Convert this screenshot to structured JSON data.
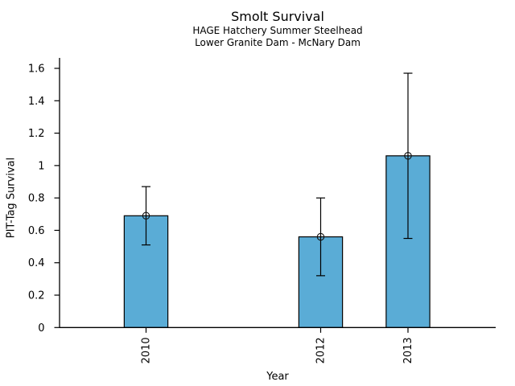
{
  "chart_data": {
    "type": "bar",
    "title": "Smolt Survival",
    "subtitle1": "HAGE Hatchery Summer Steelhead",
    "subtitle2": "Lower Granite Dam - McNary Dam",
    "xlabel": "Year",
    "ylabel": "PIT-Tag Survival",
    "categories": [
      "2010",
      "2012",
      "2013"
    ],
    "values": [
      0.69,
      0.56,
      1.06
    ],
    "error_low": [
      0.51,
      0.32,
      0.55
    ],
    "error_high": [
      0.87,
      0.8,
      1.57
    ],
    "ylim": [
      0,
      1.6
    ],
    "ytick_values": [
      0,
      0.2,
      0.4,
      0.6,
      0.8,
      1.0,
      1.2,
      1.4,
      1.6
    ],
    "ytick_labels": [
      "0",
      "0.2",
      "0.4",
      "0.6",
      "0.8",
      "1",
      "1.2",
      "1.4",
      "1.6"
    ],
    "x_is_numeric_years": true,
    "missing_years": [
      "2011"
    ],
    "grid": false,
    "legend": "none",
    "bar_color": "#5AACD6",
    "bar_edge_color": "#000000",
    "error_color": "#000000",
    "marker": "open-circle",
    "marker_color": "#111111",
    "axis_color": "#000000",
    "background_color": "#ffffff"
  }
}
